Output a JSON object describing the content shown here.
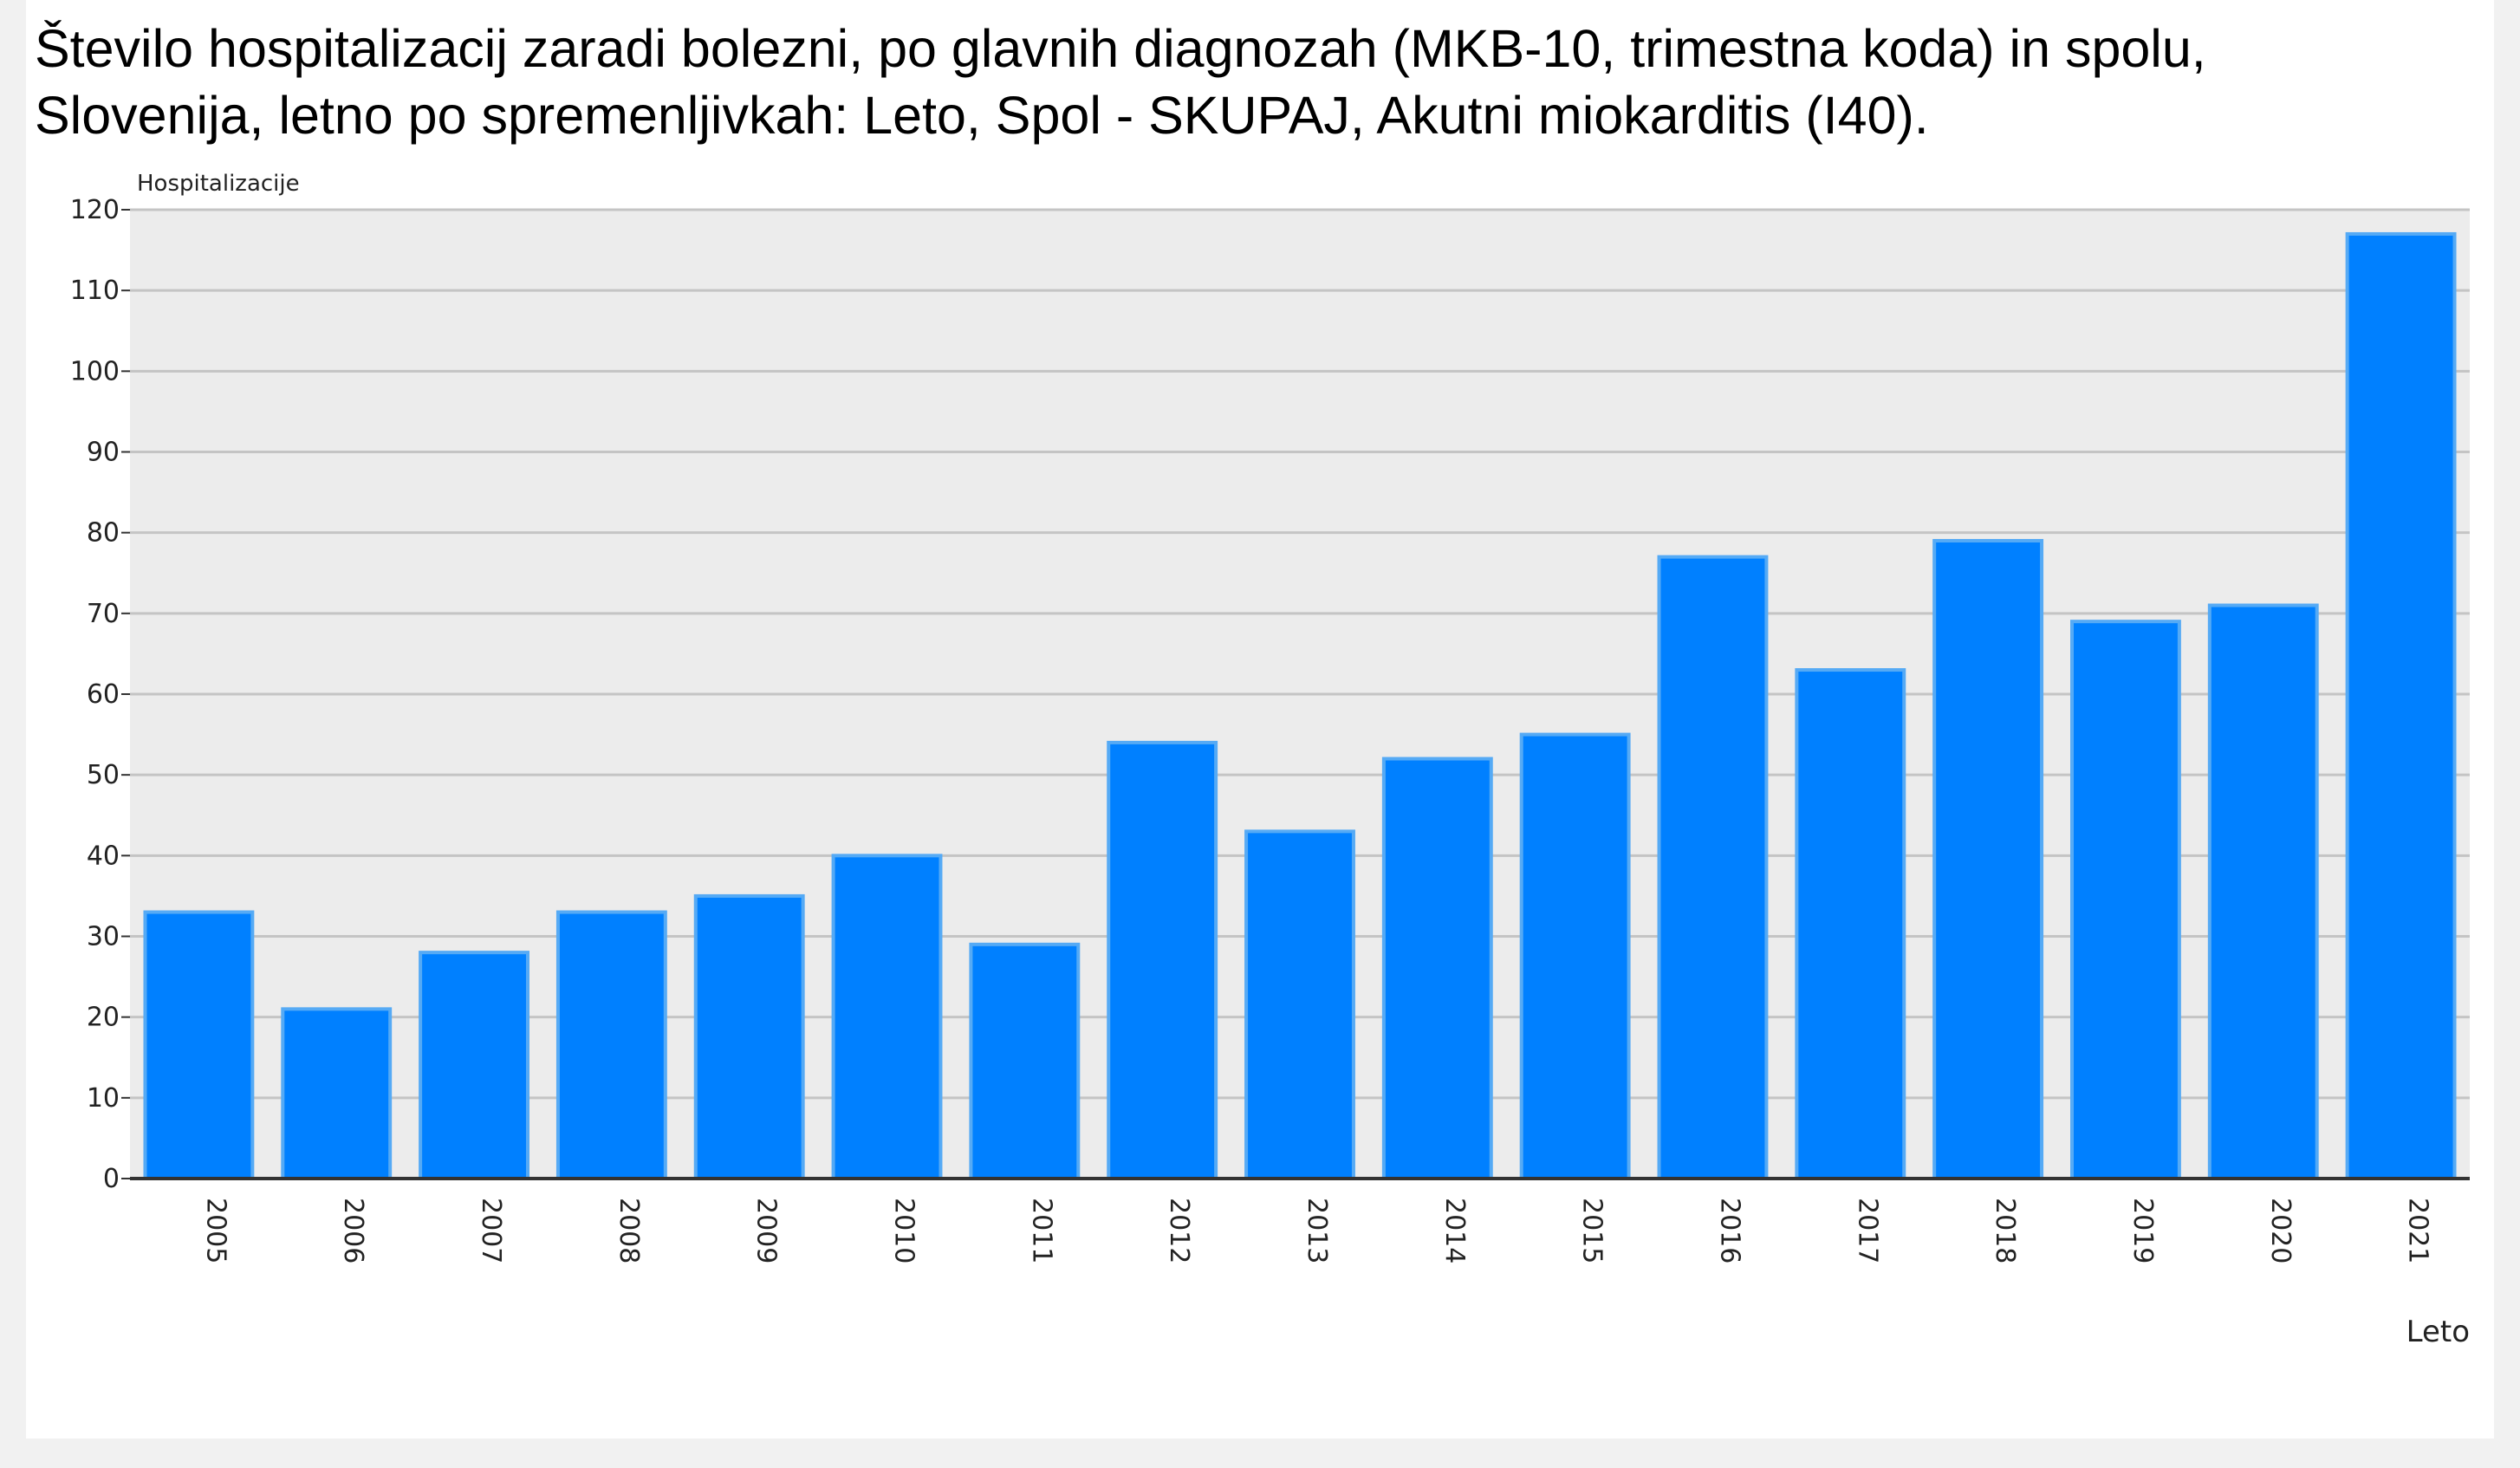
{
  "title_lines": [
    "Število hospitalizacij zaradi bolezni, po glavnih diagnozah (MKB-10, trimestna koda) in spolu,",
    "Slovenija, letno po spremenljivkah: Leto, Spol - SKUPAJ, Akutni miokarditis (I40)."
  ],
  "chart_data": {
    "type": "bar",
    "title": "Število hospitalizacij zaradi bolezni, po glavnih diagnozah (MKB-10, trimestna koda) in spolu, Slovenija, letno po spremenljivkah: Leto, Spol - SKUPAJ, Akutni miokarditis (I40).",
    "xlabel": "Leto",
    "ylabel": "Hospitalizacije",
    "categories": [
      "2005",
      "2006",
      "2007",
      "2008",
      "2009",
      "2010",
      "2011",
      "2012",
      "2013",
      "2014",
      "2015",
      "2016",
      "2017",
      "2018",
      "2019",
      "2020",
      "2021"
    ],
    "values": [
      33,
      21,
      28,
      33,
      35,
      40,
      29,
      54,
      43,
      52,
      55,
      77,
      63,
      79,
      69,
      71,
      117
    ],
    "ylim": [
      0,
      120
    ],
    "yticks": [
      0,
      10,
      20,
      30,
      40,
      50,
      60,
      70,
      80,
      90,
      100,
      110,
      120
    ],
    "grid": true,
    "legend": "none",
    "colors": {
      "bar": "#0080ff",
      "bar_edge": "#55aaf5",
      "plot_background": "#ececec",
      "gridline": "#c4c4c4",
      "axis": "#333333",
      "text": "#222222"
    }
  }
}
